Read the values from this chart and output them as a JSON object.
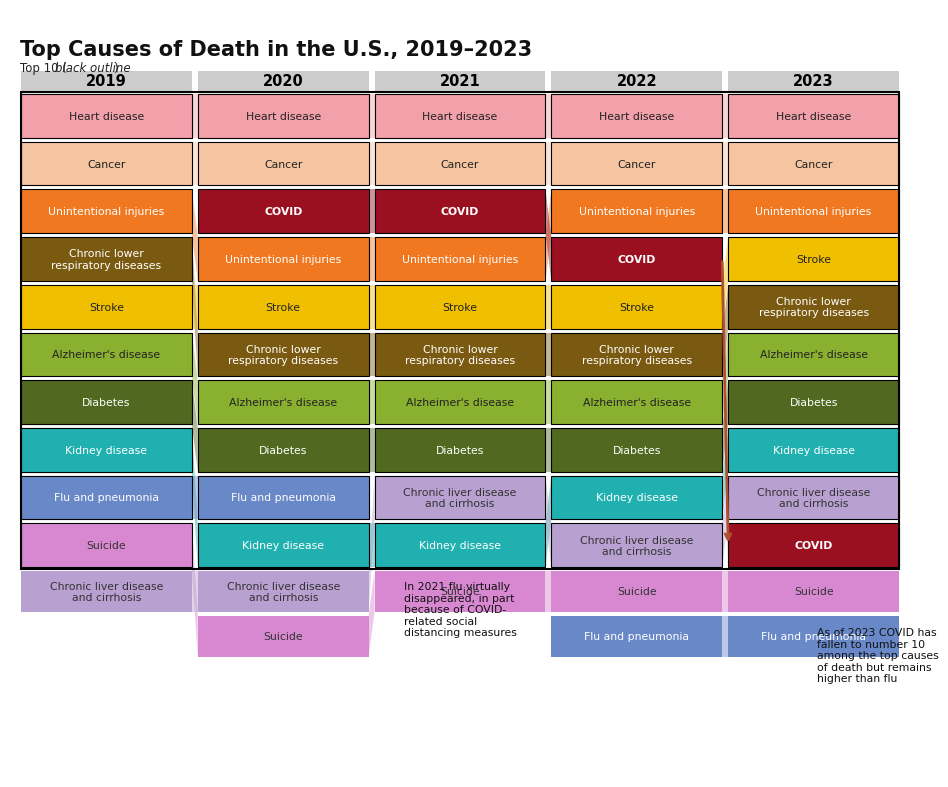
{
  "title": "Top Causes of Death in the U.S., 2019–2023",
  "subtitle_normal": "Top 10 (",
  "subtitle_italic": "black outline",
  "subtitle_end": ")",
  "years": [
    "2019",
    "2020",
    "2021",
    "2022",
    "2023"
  ],
  "causes": {
    "Heart disease": {
      "color": "#f2a0aa",
      "text_color": "#222222"
    },
    "Cancer": {
      "color": "#f5c4a0",
      "text_color": "#222222"
    },
    "Unintentional injuries": {
      "color": "#f07820",
      "text_color": "#ffffff"
    },
    "COVID": {
      "color": "#9b1020",
      "text_color": "#ffffff"
    },
    "Chronic lower respiratory diseases": {
      "color": "#7a5a10",
      "text_color": "#ffffff"
    },
    "Stroke": {
      "color": "#f0c000",
      "text_color": "#222222"
    },
    "Alzheimer's disease": {
      "color": "#8ab030",
      "text_color": "#222222"
    },
    "Diabetes": {
      "color": "#506820",
      "text_color": "#ffffff"
    },
    "Kidney disease": {
      "color": "#20b0b0",
      "text_color": "#ffffff"
    },
    "Flu and pneumonia": {
      "color": "#6888c8",
      "text_color": "#ffffff"
    },
    "Suicide": {
      "color": "#d888d0",
      "text_color": "#333333"
    },
    "Chronic liver disease and cirrhosis": {
      "color": "#b8a0d0",
      "text_color": "#333333"
    }
  },
  "rankings": {
    "2019": [
      "Heart disease",
      "Cancer",
      "Unintentional injuries",
      "Chronic lower respiratory diseases",
      "Stroke",
      "Alzheimer's disease",
      "Diabetes",
      "Kidney disease",
      "Flu and pneumonia",
      "Suicide",
      "Chronic liver disease and cirrhosis"
    ],
    "2020": [
      "Heart disease",
      "Cancer",
      "COVID",
      "Unintentional injuries",
      "Stroke",
      "Chronic lower respiratory diseases",
      "Alzheimer's disease",
      "Diabetes",
      "Flu and pneumonia",
      "Kidney disease",
      "Chronic liver disease and cirrhosis",
      "Suicide"
    ],
    "2021": [
      "Heart disease",
      "Cancer",
      "COVID",
      "Unintentional injuries",
      "Stroke",
      "Chronic lower respiratory diseases",
      "Alzheimer's disease",
      "Diabetes",
      "Chronic liver disease and cirrhosis",
      "Kidney disease",
      "Suicide"
    ],
    "2022": [
      "Heart disease",
      "Cancer",
      "Unintentional injuries",
      "COVID",
      "Stroke",
      "Chronic lower respiratory diseases",
      "Alzheimer's disease",
      "Diabetes",
      "Kidney disease",
      "Chronic liver disease and cirrhosis",
      "Suicide",
      "Flu and pneumonia"
    ],
    "2023": [
      "Heart disease",
      "Cancer",
      "Unintentional injuries",
      "Stroke",
      "Chronic lower respiratory diseases",
      "Alzheimer's disease",
      "Diabetes",
      "Kidney disease",
      "Chronic liver disease and cirrhosis",
      "COVID",
      "Suicide",
      "Flu and pneumonia"
    ]
  },
  "annotation_flu_2021": "In 2021 flu virtually\ndisappeared, in part\nbecause of COVID-\nrelated social\ndistancing measures",
  "annotation_covid_2023": "As of 2023 COVID has\nfallen to number 10\namong the top causes\nof death but remains\nhigher than flu",
  "header_bg": "#cccccc",
  "bg_color": "#ffffff",
  "connector_alpha": 0.45
}
